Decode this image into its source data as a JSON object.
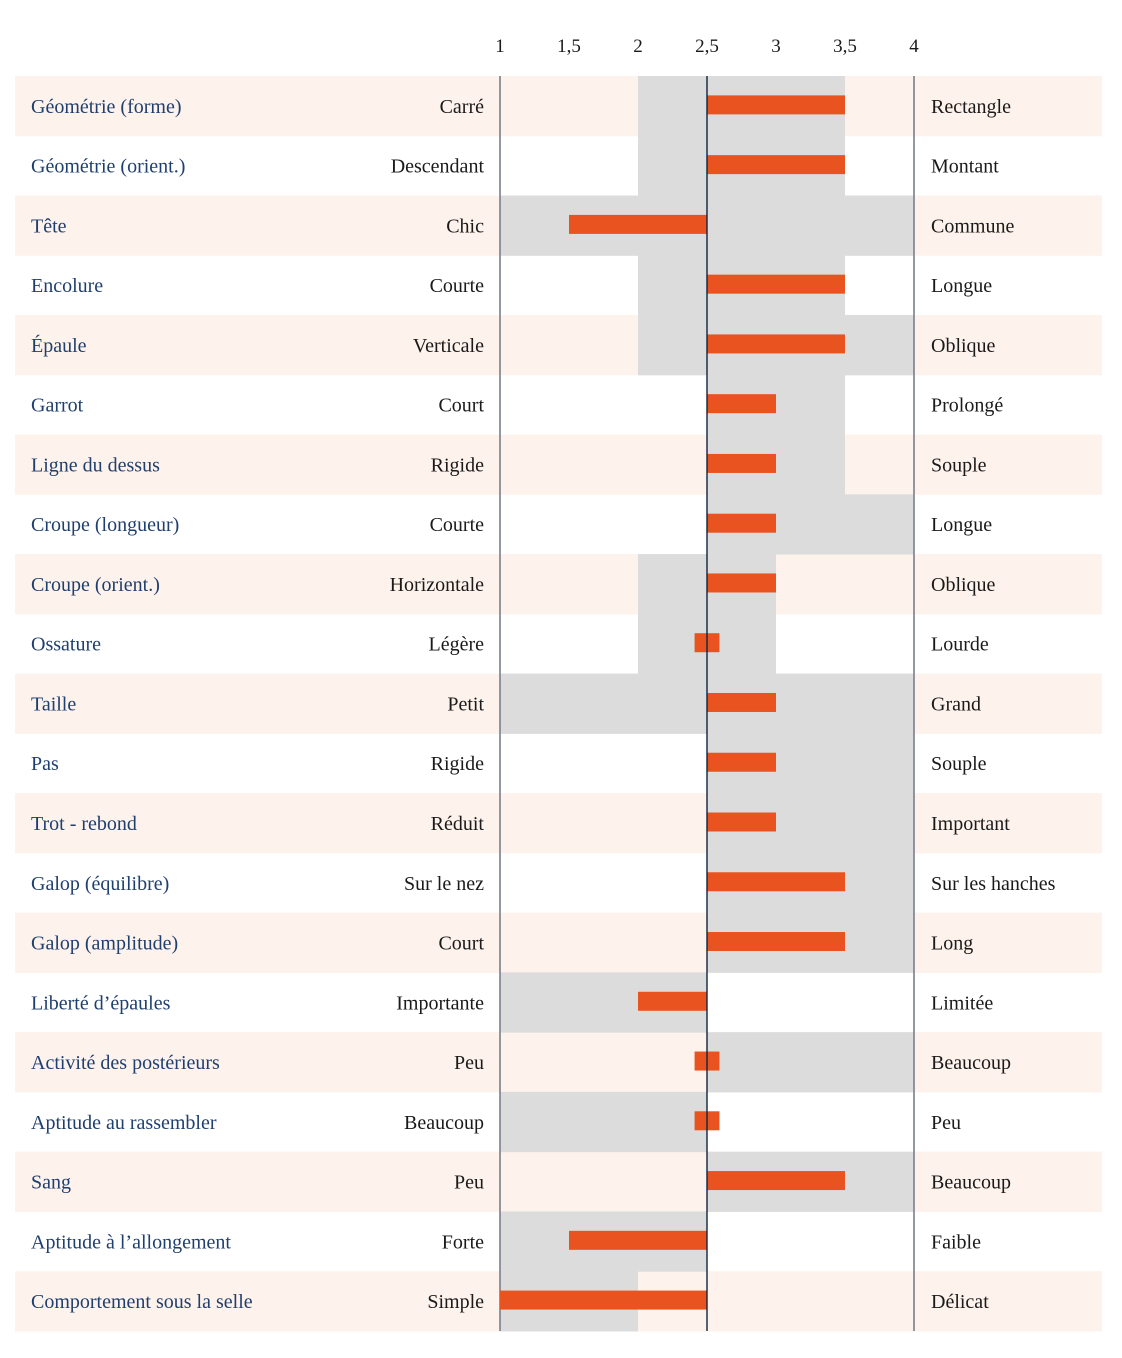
{
  "chart_data": {
    "type": "bar",
    "orientation": "horizontal",
    "baseline": 2.5,
    "xlim": [
      1,
      4
    ],
    "xticks": [
      1,
      1.5,
      2,
      2.5,
      3,
      3.5,
      4
    ],
    "xtick_labels": [
      "1",
      "1,5",
      "2",
      "2,5",
      "3",
      "3,5",
      "4"
    ],
    "title": "",
    "xlabel": "",
    "ylabel": "",
    "legend": "none",
    "grid": false,
    "colors": {
      "bar": "#e8531f",
      "range": "#dcdcdc",
      "row_alt": "#fdf2ec",
      "category_text": "#1f3f6e",
      "pole_text": "#1a1a1a",
      "center_line": "#0f2440",
      "edge_line": "#7a7f8c"
    },
    "rows": [
      {
        "category": "Géométrie (forme)",
        "left_pole": "Carré",
        "right_pole": "Rectangle",
        "range": [
          2,
          3.5
        ],
        "value": 3.5
      },
      {
        "category": "Géométrie (orient.)",
        "left_pole": "Descendant",
        "right_pole": "Montant",
        "range": [
          2,
          3.5
        ],
        "value": 3.5
      },
      {
        "category": "Tête",
        "left_pole": "Chic",
        "right_pole": "Commune",
        "range": [
          1,
          4
        ],
        "value": 1.5
      },
      {
        "category": "Encolure",
        "left_pole": "Courte",
        "right_pole": "Longue",
        "range": [
          2,
          3.5
        ],
        "value": 3.5
      },
      {
        "category": "Épaule",
        "left_pole": "Verticale",
        "right_pole": "Oblique",
        "range": [
          2,
          4
        ],
        "value": 3.5
      },
      {
        "category": "Garrot",
        "left_pole": "Court",
        "right_pole": "Prolongé",
        "range": [
          2.5,
          3.5
        ],
        "value": 3
      },
      {
        "category": "Ligne du dessus",
        "left_pole": "Rigide",
        "right_pole": "Souple",
        "range": [
          2.5,
          3.5
        ],
        "value": 3
      },
      {
        "category": "Croupe (longueur)",
        "left_pole": "Courte",
        "right_pole": "Longue",
        "range": [
          2.5,
          4
        ],
        "value": 3
      },
      {
        "category": "Croupe (orient.)",
        "left_pole": "Horizontale",
        "right_pole": "Oblique",
        "range": [
          2,
          3
        ],
        "value": 3
      },
      {
        "category": "Ossature",
        "left_pole": "Légère",
        "right_pole": "Lourde",
        "range": [
          2,
          3
        ],
        "value": 2.5
      },
      {
        "category": "Taille",
        "left_pole": "Petit",
        "right_pole": "Grand",
        "range": [
          1,
          4
        ],
        "value": 3
      },
      {
        "category": "Pas",
        "left_pole": "Rigide",
        "right_pole": "Souple",
        "range": [
          2.5,
          4
        ],
        "value": 3
      },
      {
        "category": "Trot - rebond",
        "left_pole": "Réduit",
        "right_pole": "Important",
        "range": [
          2.5,
          4
        ],
        "value": 3
      },
      {
        "category": "Galop (équilibre)",
        "left_pole": "Sur le nez",
        "right_pole": "Sur les hanches",
        "range": [
          2.5,
          4
        ],
        "value": 3.5
      },
      {
        "category": "Galop (amplitude)",
        "left_pole": "Court",
        "right_pole": "Long",
        "range": [
          2.5,
          4
        ],
        "value": 3.5
      },
      {
        "category": "Liberté d’épaules",
        "left_pole": "Importante",
        "right_pole": "Limitée",
        "range": [
          1,
          2.5
        ],
        "value": 2
      },
      {
        "category": "Activité des postérieurs",
        "left_pole": "Peu",
        "right_pole": "Beaucoup",
        "range": [
          2.5,
          4
        ],
        "value": 2.5
      },
      {
        "category": "Aptitude au rassembler",
        "left_pole": "Beaucoup",
        "right_pole": "Peu",
        "range": [
          1,
          2.5
        ],
        "value": 2.5
      },
      {
        "category": "Sang",
        "left_pole": "Peu",
        "right_pole": "Beaucoup",
        "range": [
          2.5,
          4
        ],
        "value": 3.5
      },
      {
        "category": "Aptitude à l’allongement",
        "left_pole": "Forte",
        "right_pole": "Faible",
        "range": [
          1,
          2.5
        ],
        "value": 1.5
      },
      {
        "category": "Comportement sous la selle",
        "left_pole": "Simple",
        "right_pole": "Délicat",
        "range": [
          1,
          2
        ],
        "value": 1
      }
    ]
  }
}
